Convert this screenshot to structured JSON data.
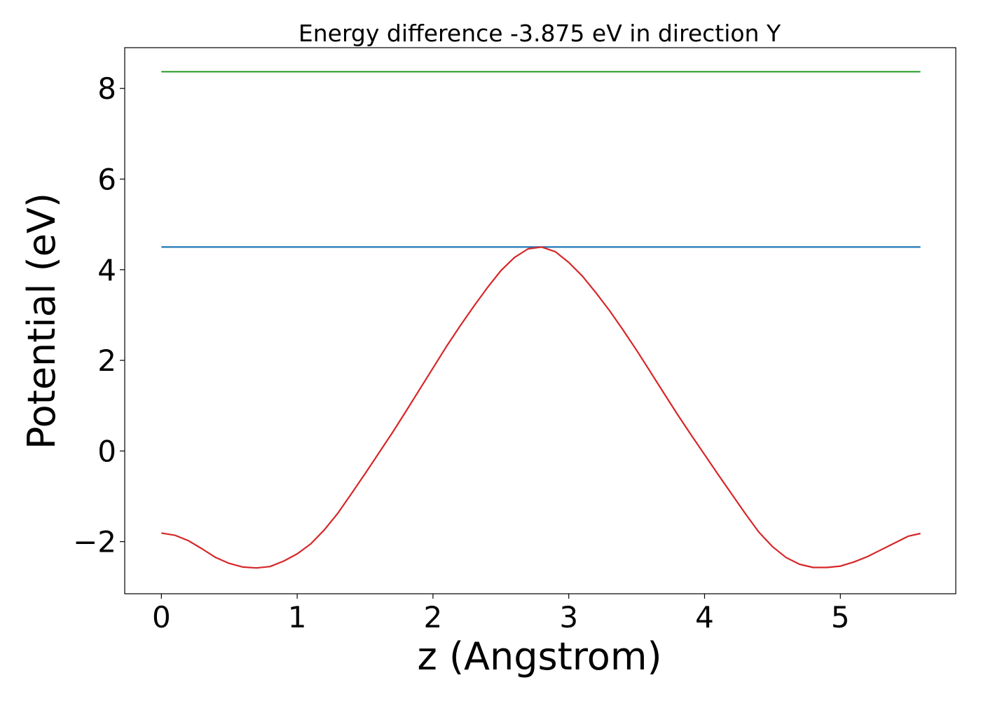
{
  "chart_data": {
    "type": "line",
    "title": "Energy difference -3.875 eV in direction Y",
    "xlabel": "z (Angstrom)",
    "ylabel": "Potential (eV)",
    "xlim": [
      -0.27,
      5.85
    ],
    "ylim": [
      -3.15,
      8.9
    ],
    "xticks": [
      0,
      1,
      2,
      3,
      4,
      5
    ],
    "yticks": [
      -2,
      0,
      2,
      4,
      6,
      8
    ],
    "xtick_labels": [
      "0",
      "1",
      "2",
      "3",
      "4",
      "5"
    ],
    "ytick_labels": [
      "−2",
      "0",
      "2",
      "4",
      "6",
      "8"
    ],
    "grid": false,
    "series": [
      {
        "color": "#2ca02c",
        "x": [
          0,
          5.59
        ],
        "y": [
          8.37,
          8.37
        ]
      },
      {
        "color": "#1f77b4",
        "x": [
          0,
          5.59
        ],
        "y": [
          4.5,
          4.5
        ]
      },
      {
        "color": "#d62728",
        "x": [
          0.0,
          0.1,
          0.2,
          0.3,
          0.4,
          0.5,
          0.6,
          0.7,
          0.8,
          0.9,
          1.0,
          1.1,
          1.2,
          1.3,
          1.4,
          1.5,
          1.6,
          1.7,
          1.8,
          1.9,
          2.0,
          2.1,
          2.2,
          2.3,
          2.4,
          2.5,
          2.6,
          2.7,
          2.8,
          2.9,
          3.0,
          3.1,
          3.2,
          3.3,
          3.4,
          3.5,
          3.6,
          3.7,
          3.8,
          3.9,
          4.0,
          4.1,
          4.2,
          4.3,
          4.4,
          4.5,
          4.6,
          4.7,
          4.8,
          4.9,
          5.0,
          5.1,
          5.2,
          5.3,
          5.4,
          5.5,
          5.59
        ],
        "y": [
          -1.81,
          -1.86,
          -1.98,
          -2.16,
          -2.35,
          -2.48,
          -2.56,
          -2.58,
          -2.55,
          -2.43,
          -2.27,
          -2.05,
          -1.74,
          -1.37,
          -0.94,
          -0.5,
          -0.05,
          0.4,
          0.87,
          1.35,
          1.83,
          2.31,
          2.76,
          3.19,
          3.6,
          3.98,
          4.27,
          4.46,
          4.5,
          4.4,
          4.16,
          3.86,
          3.49,
          3.1,
          2.67,
          2.22,
          1.75,
          1.28,
          0.81,
          0.36,
          -0.08,
          -0.52,
          -0.95,
          -1.38,
          -1.79,
          -2.11,
          -2.35,
          -2.5,
          -2.57,
          -2.57,
          -2.54,
          -2.45,
          -2.33,
          -2.18,
          -2.03,
          -1.88,
          -1.82
        ]
      }
    ]
  }
}
